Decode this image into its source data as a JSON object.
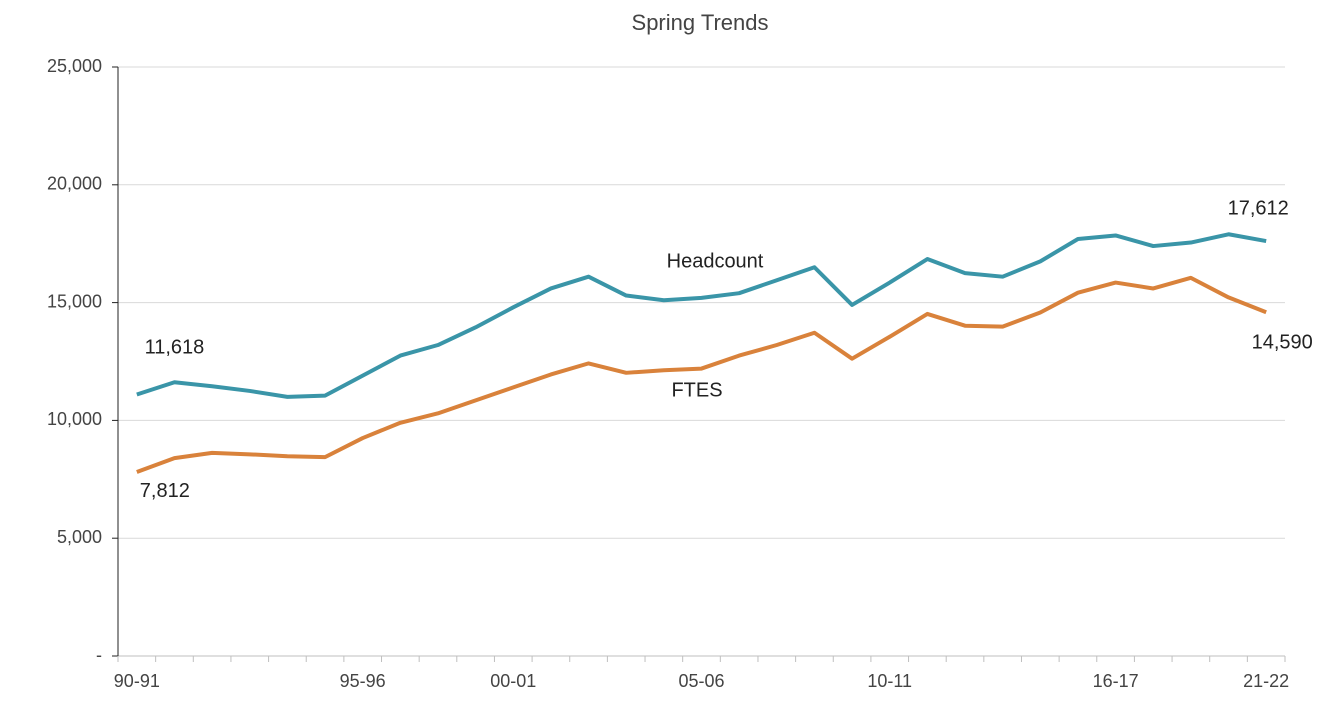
{
  "chart_data": {
    "type": "line",
    "title": "Spring Trends",
    "categories": [
      "90-91",
      null,
      null,
      null,
      null,
      null,
      "95-96",
      null,
      null,
      null,
      "00-01",
      null,
      null,
      null,
      null,
      "05-06",
      null,
      null,
      null,
      null,
      "10-11",
      null,
      null,
      null,
      null,
      null,
      "16-17",
      null,
      null,
      null,
      "21-22"
    ],
    "series": [
      {
        "name": "Headcount",
        "color": "#3a95a8",
        "values": [
          11100,
          11618,
          11450,
          11250,
          11000,
          11050,
          11900,
          12750,
          13200,
          13950,
          14800,
          15600,
          16100,
          15300,
          15100,
          15200,
          15400,
          15950,
          16500,
          14900,
          15850,
          16850,
          16250,
          16100,
          16750,
          17700,
          17850,
          17400,
          17550,
          17900,
          17612
        ],
        "value_labels": [
          null,
          "11,618",
          null,
          null,
          null,
          null,
          null,
          null,
          null,
          null,
          null,
          null,
          null,
          null,
          null,
          null,
          null,
          null,
          null,
          null,
          null,
          null,
          null,
          null,
          null,
          null,
          null,
          null,
          null,
          null,
          "17,612"
        ]
      },
      {
        "name": "FTES",
        "color": "#d9823b",
        "values": [
          7812,
          8400,
          8620,
          8560,
          8480,
          8440,
          9250,
          9900,
          10300,
          10850,
          11400,
          11950,
          12420,
          12020,
          12130,
          12200,
          12750,
          13200,
          13720,
          12620,
          13550,
          14520,
          14020,
          13980,
          14580,
          15420,
          15850,
          15600,
          16050,
          15220,
          14590
        ],
        "value_labels": [
          "7,812",
          null,
          null,
          null,
          null,
          null,
          null,
          null,
          null,
          null,
          null,
          null,
          null,
          null,
          null,
          null,
          null,
          null,
          null,
          null,
          null,
          null,
          null,
          null,
          null,
          null,
          null,
          null,
          null,
          null,
          "14,590"
        ]
      }
    ],
    "ylim": [
      0,
      25000
    ],
    "yticks": [
      {
        "value": 0,
        "label": "-"
      },
      {
        "value": 5000,
        "label": "5,000"
      },
      {
        "value": 10000,
        "label": "10,000"
      },
      {
        "value": 15000,
        "label": "15,000"
      },
      {
        "value": 20000,
        "label": "20,000"
      },
      {
        "value": 25000,
        "label": "25,000"
      }
    ],
    "grid": true
  }
}
